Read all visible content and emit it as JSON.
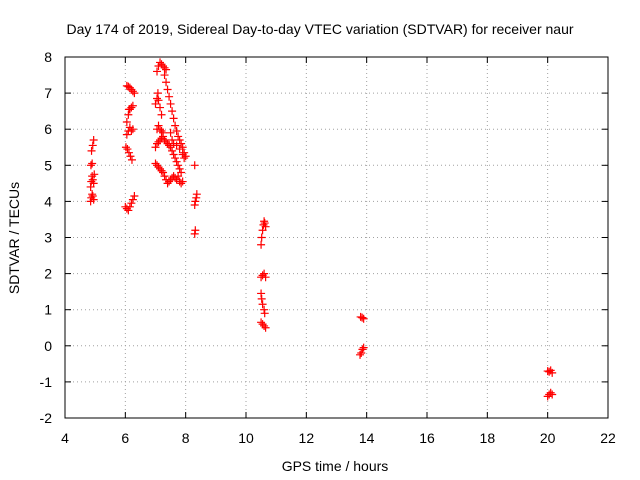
{
  "chart_data": {
    "type": "scatter",
    "title": "Day 174 of 2019, Sidereal Day-to-day VTEC variation (SDTVAR) for receiver naur",
    "xlabel": "GPS time / hours",
    "ylabel": "SDTVAR / TECUs",
    "xlim": [
      4,
      22
    ],
    "ylim": [
      -2,
      8
    ],
    "xticks": [
      4,
      6,
      8,
      10,
      12,
      14,
      16,
      18,
      20,
      22
    ],
    "yticks": [
      -2,
      -1,
      0,
      1,
      2,
      3,
      4,
      5,
      6,
      7,
      8
    ],
    "grid": true,
    "legend": "none",
    "marker": "+",
    "color": "#ff0000",
    "series": [
      {
        "name": "SDTVAR",
        "points": [
          [
            4.85,
            4.0
          ],
          [
            4.87,
            4.1
          ],
          [
            4.9,
            4.2
          ],
          [
            4.92,
            4.15
          ],
          [
            4.95,
            4.05
          ],
          [
            4.85,
            4.4
          ],
          [
            4.87,
            4.55
          ],
          [
            4.9,
            4.7
          ],
          [
            4.92,
            4.6
          ],
          [
            4.95,
            4.5
          ],
          [
            4.97,
            4.75
          ],
          [
            4.86,
            5.0
          ],
          [
            4.9,
            5.05
          ],
          [
            4.88,
            5.4
          ],
          [
            4.92,
            5.55
          ],
          [
            4.95,
            5.7
          ],
          [
            6.0,
            3.85
          ],
          [
            6.05,
            3.8
          ],
          [
            6.1,
            3.75
          ],
          [
            6.15,
            3.85
          ],
          [
            6.2,
            3.95
          ],
          [
            6.25,
            4.05
          ],
          [
            6.3,
            4.15
          ],
          [
            6.02,
            5.5
          ],
          [
            6.07,
            5.45
          ],
          [
            6.12,
            5.35
          ],
          [
            6.17,
            5.25
          ],
          [
            6.22,
            5.15
          ],
          [
            6.05,
            5.85
          ],
          [
            6.1,
            5.95
          ],
          [
            6.15,
            6.05
          ],
          [
            6.2,
            5.95
          ],
          [
            6.25,
            6.0
          ],
          [
            6.05,
            6.2
          ],
          [
            6.1,
            6.4
          ],
          [
            6.15,
            6.55
          ],
          [
            6.2,
            6.6
          ],
          [
            6.25,
            6.65
          ],
          [
            6.12,
            6.55
          ],
          [
            6.05,
            7.2
          ],
          [
            6.1,
            7.18
          ],
          [
            6.15,
            7.15
          ],
          [
            6.2,
            7.1
          ],
          [
            6.25,
            7.05
          ],
          [
            6.3,
            7.0
          ],
          [
            7.0,
            5.05
          ],
          [
            7.05,
            5.0
          ],
          [
            7.1,
            4.95
          ],
          [
            7.15,
            4.9
          ],
          [
            7.2,
            4.85
          ],
          [
            7.25,
            4.8
          ],
          [
            7.3,
            4.7
          ],
          [
            7.35,
            4.6
          ],
          [
            7.4,
            4.5
          ],
          [
            7.45,
            4.55
          ],
          [
            7.5,
            4.6
          ],
          [
            7.55,
            4.65
          ],
          [
            7.6,
            4.7
          ],
          [
            7.65,
            4.65
          ],
          [
            7.7,
            4.6
          ],
          [
            7.75,
            4.7
          ],
          [
            7.8,
            4.55
          ],
          [
            7.85,
            4.5
          ],
          [
            7.9,
            4.55
          ],
          [
            7.0,
            5.5
          ],
          [
            7.05,
            5.6
          ],
          [
            7.1,
            5.65
          ],
          [
            7.15,
            5.7
          ],
          [
            7.2,
            5.75
          ],
          [
            7.25,
            5.8
          ],
          [
            7.3,
            5.7
          ],
          [
            7.35,
            5.65
          ],
          [
            7.4,
            5.6
          ],
          [
            7.45,
            5.55
          ],
          [
            7.5,
            5.5
          ],
          [
            7.55,
            5.4
          ],
          [
            7.6,
            5.3
          ],
          [
            7.65,
            5.2
          ],
          [
            7.7,
            5.1
          ],
          [
            7.75,
            5.0
          ],
          [
            7.8,
            4.9
          ],
          [
            7.85,
            4.8
          ],
          [
            7.05,
            6.0
          ],
          [
            7.1,
            6.1
          ],
          [
            7.15,
            6.0
          ],
          [
            7.2,
            5.95
          ],
          [
            7.25,
            5.9
          ],
          [
            7.0,
            6.7
          ],
          [
            7.05,
            6.85
          ],
          [
            7.08,
            7.0
          ],
          [
            7.1,
            6.8
          ],
          [
            7.15,
            6.6
          ],
          [
            7.2,
            6.4
          ],
          [
            7.05,
            7.6
          ],
          [
            7.1,
            7.75
          ],
          [
            7.15,
            7.85
          ],
          [
            7.2,
            7.8
          ],
          [
            7.25,
            7.75
          ],
          [
            7.3,
            7.7
          ],
          [
            7.35,
            7.65
          ],
          [
            7.3,
            7.5
          ],
          [
            7.35,
            7.3
          ],
          [
            7.4,
            7.1
          ],
          [
            7.45,
            6.9
          ],
          [
            7.5,
            6.7
          ],
          [
            7.55,
            6.5
          ],
          [
            7.6,
            6.3
          ],
          [
            7.65,
            6.1
          ],
          [
            7.7,
            5.95
          ],
          [
            7.75,
            5.8
          ],
          [
            7.8,
            5.7
          ],
          [
            7.85,
            5.6
          ],
          [
            7.9,
            5.5
          ],
          [
            7.95,
            5.35
          ],
          [
            8.0,
            5.25
          ],
          [
            7.5,
            5.9
          ],
          [
            7.55,
            5.7
          ],
          [
            7.6,
            5.6
          ],
          [
            7.7,
            5.55
          ],
          [
            7.8,
            5.45
          ],
          [
            7.9,
            5.3
          ],
          [
            7.95,
            5.2
          ],
          [
            8.3,
            3.1
          ],
          [
            8.32,
            3.2
          ],
          [
            8.3,
            3.9
          ],
          [
            8.32,
            4.0
          ],
          [
            8.35,
            4.1
          ],
          [
            8.37,
            4.2
          ],
          [
            8.3,
            5.0
          ],
          [
            10.5,
            2.8
          ],
          [
            10.52,
            3.0
          ],
          [
            10.55,
            3.2
          ],
          [
            10.58,
            3.35
          ],
          [
            10.6,
            3.45
          ],
          [
            10.62,
            3.4
          ],
          [
            10.65,
            3.3
          ],
          [
            10.5,
            1.9
          ],
          [
            10.55,
            1.95
          ],
          [
            10.6,
            2.0
          ],
          [
            10.65,
            1.9
          ],
          [
            10.5,
            1.45
          ],
          [
            10.52,
            1.3
          ],
          [
            10.55,
            1.15
          ],
          [
            10.6,
            1.0
          ],
          [
            10.62,
            0.9
          ],
          [
            10.5,
            0.65
          ],
          [
            10.55,
            0.6
          ],
          [
            10.6,
            0.55
          ],
          [
            10.65,
            0.5
          ],
          [
            13.8,
            0.8
          ],
          [
            13.85,
            0.78
          ],
          [
            13.9,
            0.75
          ],
          [
            13.78,
            -0.25
          ],
          [
            13.82,
            -0.2
          ],
          [
            13.86,
            -0.1
          ],
          [
            13.9,
            -0.05
          ],
          [
            20.0,
            -0.7
          ],
          [
            20.05,
            -0.72
          ],
          [
            20.1,
            -0.68
          ],
          [
            20.15,
            -0.75
          ],
          [
            20.0,
            -1.4
          ],
          [
            20.05,
            -1.35
          ],
          [
            20.1,
            -1.3
          ],
          [
            20.15,
            -1.35
          ]
        ]
      }
    ]
  }
}
